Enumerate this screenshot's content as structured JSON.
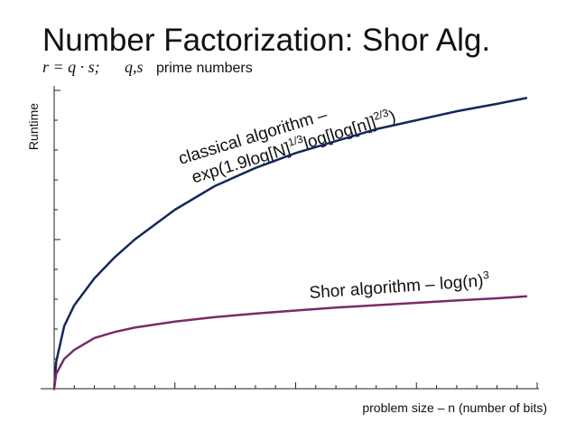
{
  "chart_data": {
    "type": "line",
    "title": "Number Factorization: Shor Alg.",
    "formula": "r = q · s;",
    "formula_vars": "q,s",
    "subtitle": "prime numbers",
    "y_label": "Runtime",
    "x_label": "problem size – n (number of bits)",
    "annotations": {
      "classical_line1": "classical algorithm –",
      "classical_a": "exp(1.9log[N]",
      "classical_sup1": "1/3",
      "classical_b": "log[log[n]]",
      "classical_sup2": "2/3",
      "classical_c": ")",
      "shor": "Shor algorithm – log(n)",
      "shor_sup": "3"
    },
    "x": [
      0,
      0.1,
      0.5,
      1,
      2,
      3,
      4,
      6,
      8,
      10,
      12,
      14,
      16,
      18,
      20,
      22,
      23.5
    ],
    "series": [
      {
        "name": "classical algorithm",
        "color": "#13295a",
        "values": [
          0,
          0.9,
          2.1,
          2.8,
          3.7,
          4.4,
          5.0,
          6.0,
          6.8,
          7.4,
          7.9,
          8.3,
          8.7,
          9.0,
          9.3,
          9.55,
          9.75
        ]
      },
      {
        "name": "Shor algorithm",
        "color": "#7a2a68",
        "values": [
          0,
          0.5,
          1.0,
          1.3,
          1.7,
          1.9,
          2.05,
          2.25,
          2.4,
          2.52,
          2.62,
          2.72,
          2.8,
          2.88,
          2.96,
          3.03,
          3.1
        ]
      }
    ],
    "xlim": [
      0,
      24
    ],
    "xticks": [
      0,
      1,
      2,
      3,
      4,
      5,
      6,
      7,
      8,
      9,
      10,
      11,
      12,
      13,
      14,
      15,
      16,
      17,
      18,
      19,
      20,
      21,
      22,
      23,
      24
    ],
    "ylim": [
      0,
      10
    ],
    "yticks": [
      0,
      1,
      2,
      3,
      4,
      5,
      6,
      7,
      8,
      9,
      10
    ],
    "grid": false
  }
}
